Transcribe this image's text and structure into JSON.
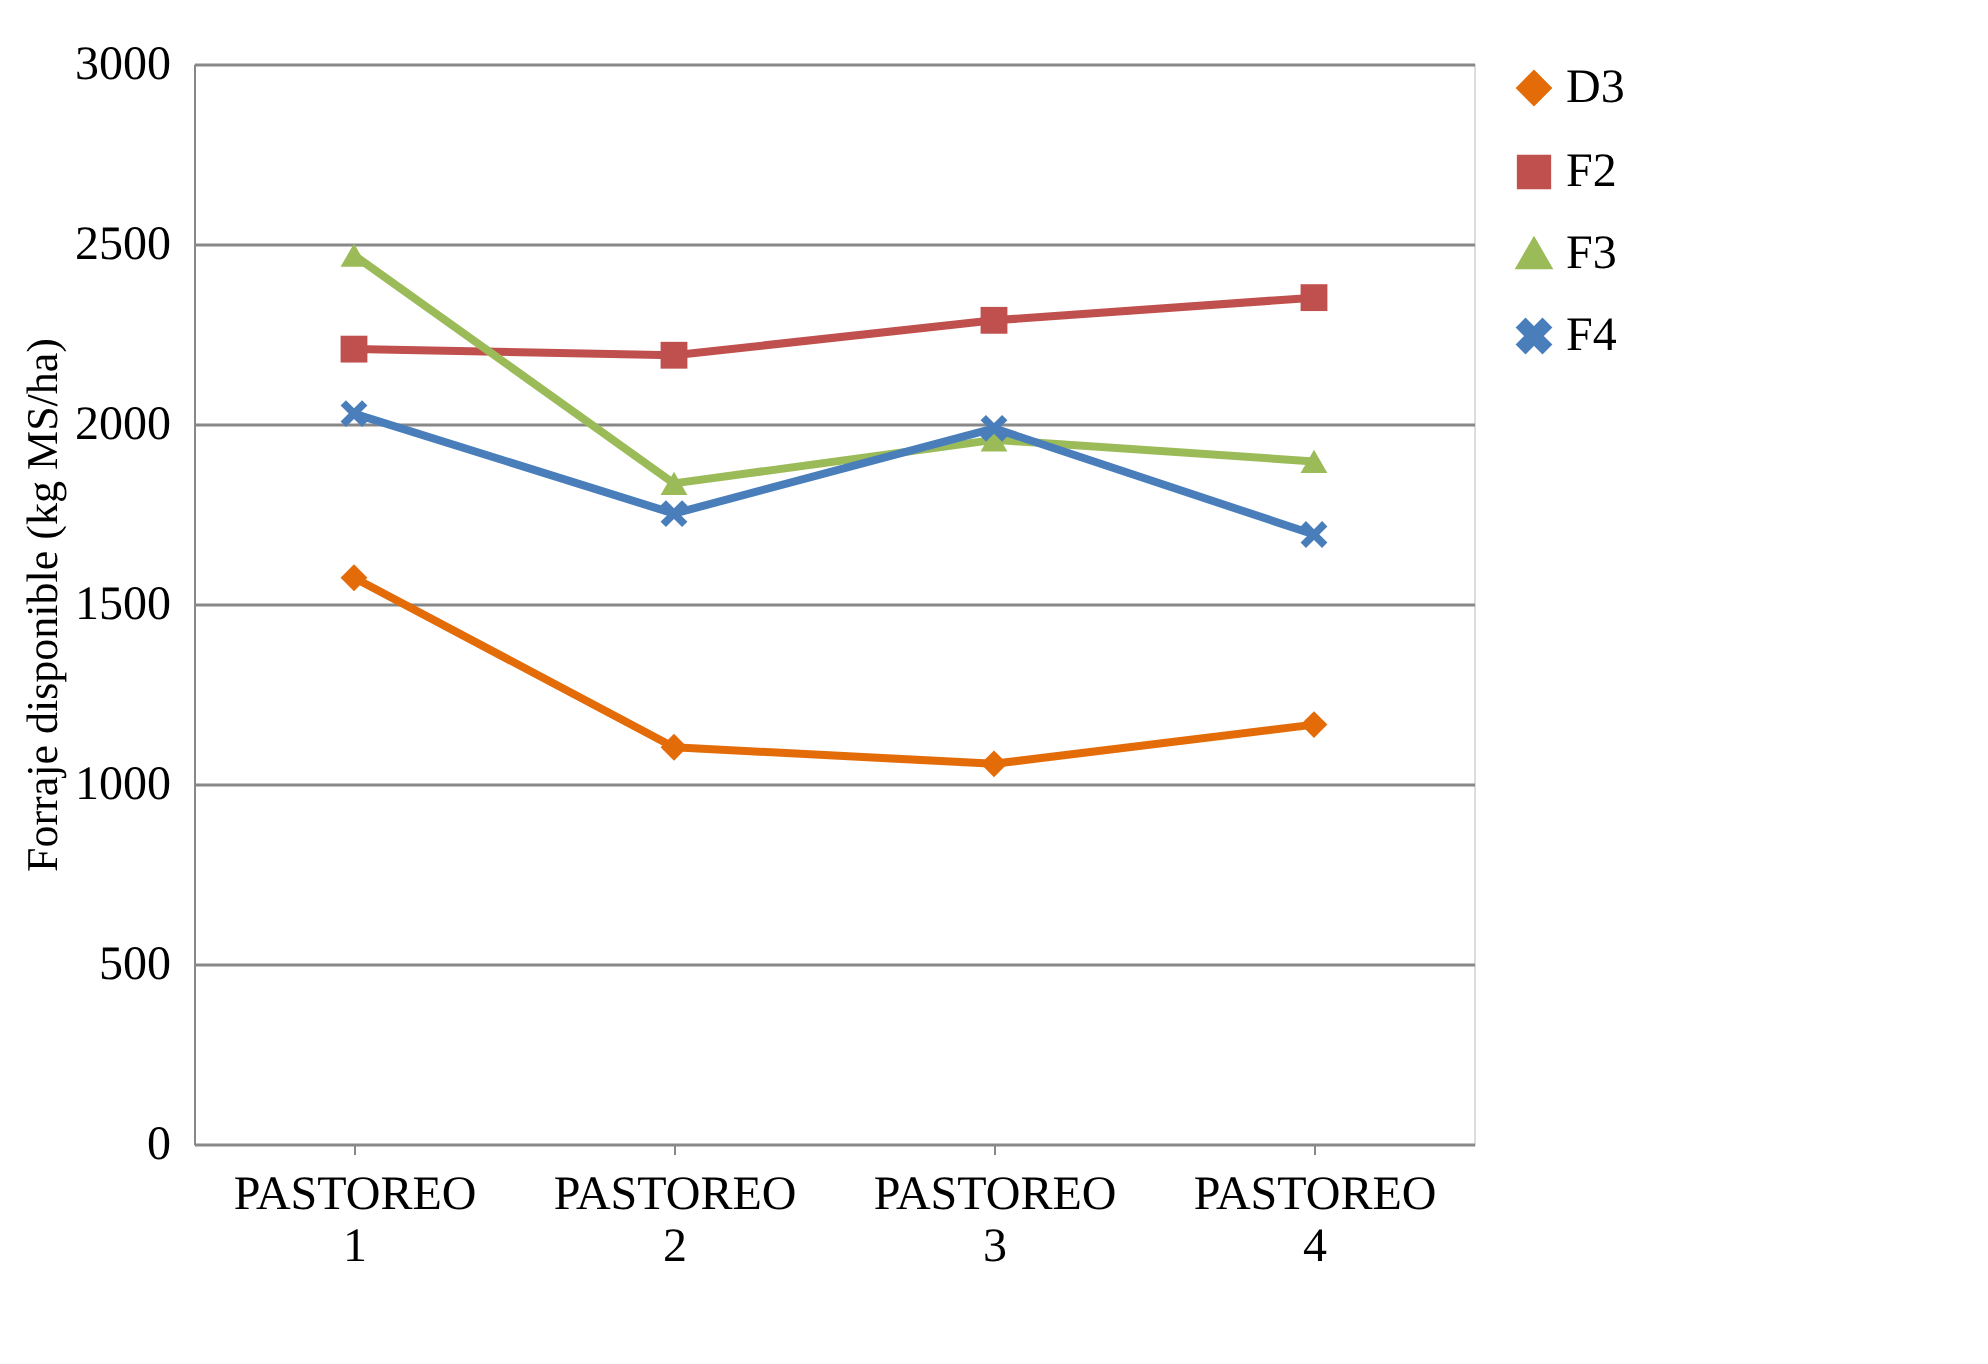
{
  "chart_data": {
    "type": "line",
    "ylabel": "Forraje disponible (kg MS/ha)",
    "categories": [
      "PASTOREO 1",
      "PASTOREO 2",
      "PASTOREO 3",
      "PASTOREO 4"
    ],
    "series": [
      {
        "name": "D3",
        "color": "#e36c09",
        "marker": "diamond",
        "values": [
          1573,
          1102,
          1056,
          1165
        ]
      },
      {
        "name": "F2",
        "color": "#c0504d",
        "marker": "square",
        "values": [
          2208,
          2191,
          2288,
          2351
        ]
      },
      {
        "name": "F3",
        "color": "#9bbb59",
        "marker": "triangle",
        "values": [
          2469,
          1835,
          1956,
          1896
        ]
      },
      {
        "name": "F4",
        "color": "#4a7ebb",
        "marker": "cross",
        "values": [
          2029,
          1751,
          1988,
          1693
        ]
      }
    ],
    "ylim": [
      0,
      3000
    ],
    "yticks": [
      0,
      500,
      1000,
      1500,
      2000,
      2500,
      3000
    ],
    "grid": "y",
    "legend": "right",
    "line_style": "solid"
  }
}
